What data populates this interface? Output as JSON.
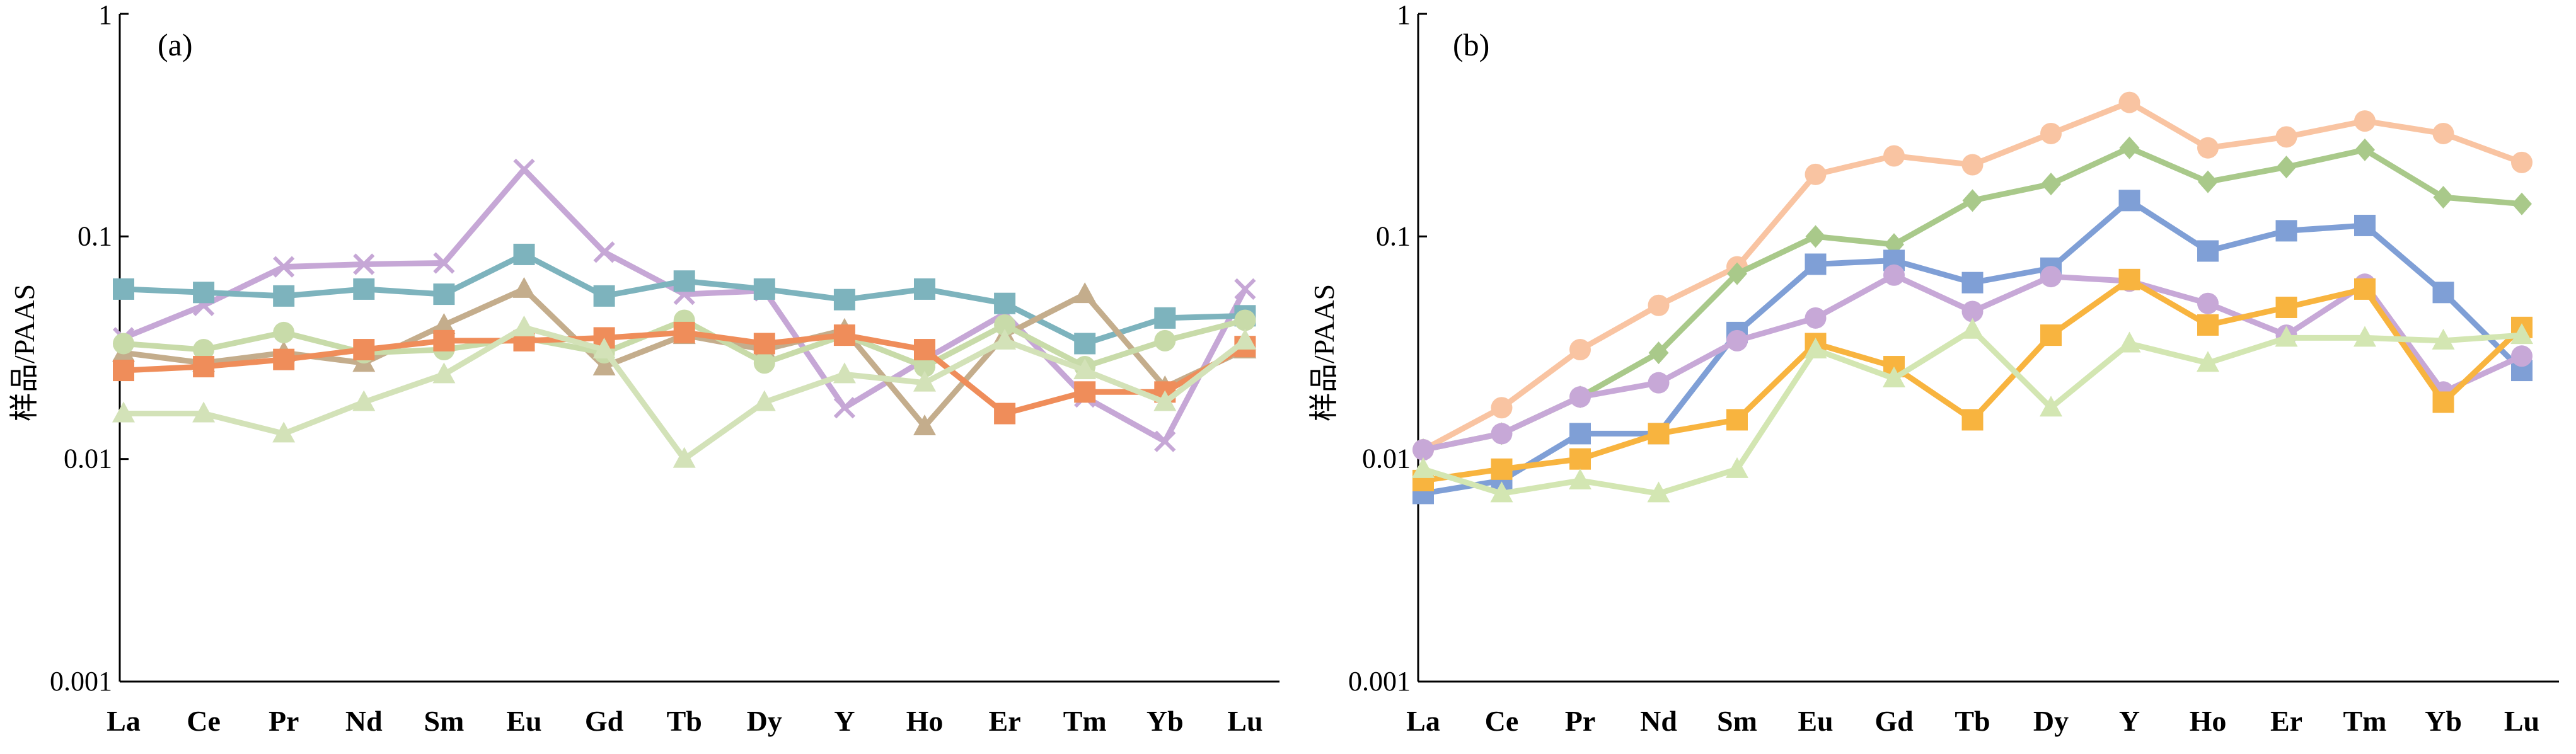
{
  "chart_data": [
    {
      "type": "line",
      "panel_label": "(a)",
      "xlabel": "",
      "ylabel": "样品/PAAS",
      "y_scale": "log",
      "ylim": [
        0.001,
        1
      ],
      "y_ticks": [
        "0.001",
        "0.01",
        "0.1",
        "1"
      ],
      "categories": [
        "La",
        "Ce",
        "Pr",
        "Nd",
        "Sm",
        "Eu",
        "Gd",
        "Tb",
        "Dy",
        "Y",
        "Ho",
        "Er",
        "Tm",
        "Yb",
        "Lu"
      ],
      "grid": false,
      "legend": "none",
      "series": [
        {
          "color": "#c6a7d6",
          "marker": "x",
          "values": [
            0.035,
            0.049,
            0.073,
            0.075,
            0.076,
            0.2,
            0.085,
            0.055,
            0.057,
            0.017,
            0.028,
            0.045,
            0.019,
            0.012,
            0.058
          ]
        },
        {
          "color": "#7db3bd",
          "marker": "square",
          "values": [
            0.058,
            0.056,
            0.054,
            0.058,
            0.055,
            0.083,
            0.054,
            0.063,
            0.058,
            0.052,
            0.058,
            0.05,
            0.033,
            0.043,
            0.044
          ]
        },
        {
          "color": "#c4ad8c",
          "marker": "triangle",
          "values": [
            0.03,
            0.027,
            0.03,
            0.027,
            0.04,
            0.058,
            0.026,
            0.036,
            0.031,
            0.038,
            0.014,
            0.036,
            0.055,
            0.021,
            0.031
          ]
        },
        {
          "color": "#c8dba9",
          "marker": "circle",
          "values": [
            0.033,
            0.031,
            0.037,
            0.03,
            0.031,
            0.035,
            0.03,
            0.042,
            0.027,
            0.036,
            0.026,
            0.04,
            0.026,
            0.034,
            0.042
          ]
        },
        {
          "color": "#ef8d5a",
          "marker": "square",
          "values": [
            0.025,
            0.026,
            0.028,
            0.031,
            0.034,
            0.034,
            0.035,
            0.037,
            0.033,
            0.036,
            0.031,
            0.016,
            0.02,
            0.02,
            0.032
          ]
        },
        {
          "color": "#d3e2b8",
          "marker": "triangle",
          "values": [
            0.016,
            0.016,
            0.013,
            0.018,
            0.024,
            0.039,
            0.031,
            0.01,
            0.018,
            0.024,
            0.022,
            0.034,
            0.025,
            0.018,
            0.034
          ]
        }
      ]
    },
    {
      "type": "line",
      "panel_label": "(b)",
      "xlabel": "",
      "ylabel": "样品/PAAS",
      "y_scale": "log",
      "ylim": [
        0.001,
        1
      ],
      "y_ticks": [
        "0.001",
        "0.01",
        "0.1",
        "1"
      ],
      "categories": [
        "La",
        "Ce",
        "Pr",
        "Nd",
        "Sm",
        "Eu",
        "Gd",
        "Tb",
        "Dy",
        "Y",
        "Ho",
        "Er",
        "Tm",
        "Yb",
        "Lu"
      ],
      "grid": false,
      "legend": "none",
      "series": [
        {
          "color": "#f9c4a2",
          "marker": "circle",
          "values": [
            0.011,
            0.017,
            0.031,
            0.049,
            0.073,
            0.19,
            0.23,
            0.21,
            0.29,
            0.4,
            0.25,
            0.28,
            0.33,
            0.29,
            0.215
          ]
        },
        {
          "color": "#a9c98a",
          "marker": "diamond",
          "values": [
            0.011,
            0.013,
            0.019,
            0.03,
            0.068,
            0.1,
            0.092,
            0.145,
            0.172,
            0.25,
            0.176,
            0.205,
            0.245,
            0.15,
            0.14
          ]
        },
        {
          "color": "#7f9fd6",
          "marker": "square",
          "values": [
            0.007,
            0.008,
            0.013,
            0.013,
            0.037,
            0.075,
            0.078,
            0.062,
            0.072,
            0.145,
            0.086,
            0.106,
            0.112,
            0.056,
            0.025
          ]
        },
        {
          "color": "#c7a8d7",
          "marker": "circle",
          "values": [
            0.011,
            0.013,
            0.019,
            0.022,
            0.034,
            0.043,
            0.067,
            0.046,
            0.066,
            0.063,
            0.05,
            0.036,
            0.061,
            0.02,
            0.029
          ]
        },
        {
          "color": "#f8b43f",
          "marker": "square",
          "values": [
            0.008,
            0.009,
            0.01,
            0.013,
            0.015,
            0.033,
            0.026,
            0.015,
            0.036,
            0.064,
            0.04,
            0.048,
            0.058,
            0.018,
            0.039
          ]
        },
        {
          "color": "#d3e6b2",
          "marker": "triangle",
          "values": [
            0.009,
            0.007,
            0.008,
            0.007,
            0.009,
            0.031,
            0.023,
            0.038,
            0.017,
            0.033,
            0.027,
            0.035,
            0.035,
            0.034,
            0.036
          ]
        }
      ]
    }
  ]
}
